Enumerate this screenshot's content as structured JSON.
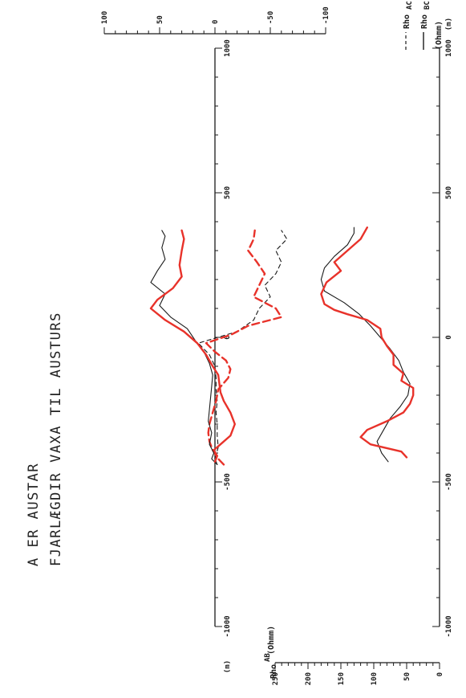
{
  "titles": {
    "line1": "A ER AUSTAR",
    "line2": "FJARLÆGDIR VAXA TIL AUSTURS"
  },
  "legend": {
    "ac_label": "Rho",
    "ac_sub": "AC-AB",
    "bc_label": "Rho",
    "bc_sub": "BC-AB",
    "units": "(Ohmm)"
  },
  "colors": {
    "black": "#1a1a1a",
    "red": "#e8322a"
  },
  "chart_data": [
    {
      "type": "line",
      "description_panel": "top",
      "x_unit_label": "(m)",
      "xlim": [
        -1000,
        1000
      ],
      "x_ticks": [
        -1000,
        -500,
        0,
        500,
        1000
      ],
      "y_ticks": [
        100,
        50,
        0,
        -50,
        -100
      ],
      "ylim": [
        100,
        -100
      ],
      "series": [
        {
          "name": "Rho AC-AB",
          "style": "dashed",
          "color": "black",
          "x": [
            -440,
            -420,
            -380,
            -340,
            -300,
            -260,
            -220,
            -180,
            -140,
            -100,
            -60,
            -20,
            20,
            60,
            100,
            140,
            180,
            220,
            260,
            300,
            340,
            370
          ],
          "y": [
            -2,
            0,
            -3,
            -2,
            -2,
            -1,
            -2,
            -1,
            -1,
            0,
            5,
            15,
            -20,
            -35,
            -40,
            -50,
            -45,
            -55,
            -60,
            -55,
            -65,
            -60
          ]
        },
        {
          "name": "Rho AC-AB",
          "style": "dashed",
          "color": "red",
          "x": [
            -440,
            -420,
            -390,
            -360,
            -330,
            -300,
            -260,
            -220,
            -180,
            -140,
            -110,
            -80,
            -50,
            -20,
            10,
            40,
            70,
            100,
            140,
            180,
            220,
            260,
            300,
            340,
            370
          ],
          "y": [
            -8,
            -3,
            2,
            5,
            6,
            5,
            2,
            -1,
            -3,
            -12,
            -14,
            -10,
            0,
            8,
            -15,
            -30,
            -60,
            -55,
            -35,
            -40,
            -45,
            -38,
            -30,
            -35,
            -36
          ]
        },
        {
          "name": "Rho BC-AB",
          "style": "solid",
          "color": "black",
          "x": [
            -440,
            -420,
            -400,
            -370,
            -330,
            -290,
            -250,
            -210,
            -170,
            -130,
            -90,
            -50,
            -10,
            30,
            70,
            110,
            150,
            190,
            230,
            270,
            310,
            350,
            370
          ],
          "y": [
            -2,
            3,
            1,
            5,
            3,
            6,
            5,
            4,
            3,
            2,
            5,
            10,
            18,
            25,
            40,
            50,
            45,
            58,
            52,
            45,
            48,
            45,
            48
          ]
        },
        {
          "name": "Rho BC-AB",
          "style": "solid",
          "color": "red",
          "x": [
            -430,
            -410,
            -390,
            -370,
            -340,
            -300,
            -260,
            -220,
            -190,
            -160,
            -130,
            -100,
            -60,
            -20,
            20,
            60,
            100,
            130,
            170,
            210,
            250,
            300,
            340,
            370
          ],
          "y": [
            0,
            -2,
            1,
            -5,
            -14,
            -18,
            -14,
            -8,
            -5,
            -4,
            -3,
            2,
            8,
            16,
            28,
            45,
            58,
            52,
            38,
            30,
            32,
            30,
            28,
            30
          ]
        }
      ]
    },
    {
      "type": "line",
      "description_panel": "bottom",
      "x_unit_label": "(m)",
      "y_label": "Rho",
      "y_sub": "AB",
      "y_units": "(Ohmm)",
      "xlim": [
        -1000,
        1000
      ],
      "x_ticks": [
        -1000,
        -500,
        0,
        500,
        1000
      ],
      "y_ticks": [
        250,
        200,
        150,
        100,
        50,
        0
      ],
      "ylim": [
        0,
        250
      ],
      "series": [
        {
          "name": "Rho AB",
          "style": "solid",
          "color": "black",
          "x": [
            -430,
            -400,
            -360,
            -320,
            -280,
            -240,
            -200,
            -160,
            -120,
            -80,
            -40,
            0,
            40,
            80,
            120,
            160,
            200,
            240,
            280,
            320,
            360,
            380
          ],
          "y": [
            78,
            88,
            95,
            85,
            75,
            60,
            48,
            45,
            55,
            62,
            75,
            90,
            105,
            122,
            145,
            175,
            180,
            175,
            160,
            140,
            130,
            130
          ]
        },
        {
          "name": "Rho AB",
          "style": "solid",
          "color": "red",
          "x": [
            -415,
            -395,
            -370,
            -345,
            -320,
            -290,
            -260,
            -230,
            -200,
            -175,
            -150,
            -125,
            -95,
            -60,
            -30,
            0,
            30,
            60,
            80,
            95,
            115,
            150,
            190,
            230,
            260,
            300,
            340,
            380
          ],
          "y": [
            50,
            58,
            105,
            120,
            110,
            80,
            55,
            45,
            40,
            40,
            58,
            55,
            70,
            70,
            80,
            88,
            90,
            110,
            140,
            160,
            175,
            180,
            172,
            150,
            160,
            140,
            120,
            110
          ]
        }
      ]
    }
  ]
}
